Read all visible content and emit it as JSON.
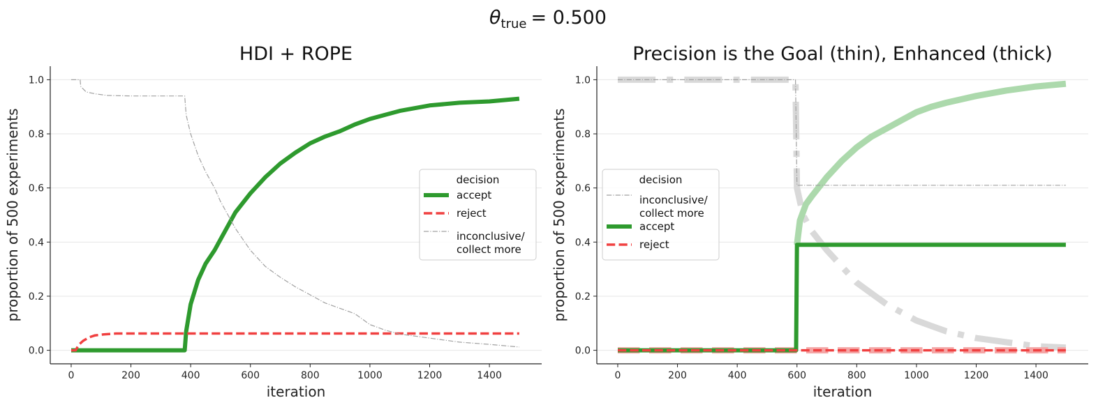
{
  "figure": {
    "suptitle_symbol": "θ",
    "suptitle_subscript": "true",
    "suptitle_value": "= 0.500"
  },
  "chart_data": [
    {
      "type": "line",
      "title": "HDI + ROPE",
      "xlabel": "iteration",
      "ylabel": "proportion of 500 experiments",
      "xlim": [
        -70,
        1575
      ],
      "ylim": [
        -0.05,
        1.05
      ],
      "xticks": [
        0,
        200,
        400,
        600,
        800,
        1000,
        1200,
        1400
      ],
      "yticks": [
        0.0,
        0.2,
        0.4,
        0.6,
        0.8,
        1.0
      ],
      "ytick_labels": [
        "0.0",
        "0.2",
        "0.4",
        "0.6",
        "0.8",
        "1.0"
      ],
      "grid": "horizontal",
      "legend": {
        "title": "decision",
        "position": "center-right"
      },
      "series": [
        {
          "name": "accept",
          "style": "solid",
          "weight": "thick",
          "color": "#2e9a2e",
          "points": [
            [
              0,
              0
            ],
            [
              380,
              0
            ],
            [
              385,
              0.07
            ],
            [
              400,
              0.17
            ],
            [
              425,
              0.26
            ],
            [
              450,
              0.32
            ],
            [
              480,
              0.37
            ],
            [
              500,
              0.41
            ],
            [
              550,
              0.51
            ],
            [
              600,
              0.58
            ],
            [
              650,
              0.64
            ],
            [
              700,
              0.69
            ],
            [
              750,
              0.73
            ],
            [
              800,
              0.765
            ],
            [
              850,
              0.79
            ],
            [
              900,
              0.81
            ],
            [
              950,
              0.835
            ],
            [
              1000,
              0.855
            ],
            [
              1050,
              0.87
            ],
            [
              1100,
              0.885
            ],
            [
              1200,
              0.905
            ],
            [
              1300,
              0.915
            ],
            [
              1400,
              0.92
            ],
            [
              1500,
              0.93
            ]
          ]
        },
        {
          "name": "reject",
          "style": "dashed",
          "weight": "medium",
          "color": "#f04040",
          "points": [
            [
              0,
              0
            ],
            [
              15,
              0
            ],
            [
              25,
              0.02
            ],
            [
              40,
              0.035
            ],
            [
              60,
              0.048
            ],
            [
              80,
              0.055
            ],
            [
              110,
              0.059
            ],
            [
              150,
              0.062
            ],
            [
              200,
              0.062
            ],
            [
              1500,
              0.062
            ]
          ]
        },
        {
          "name": "inconclusive/\ncollect more",
          "style": "dashdot",
          "weight": "thin",
          "color": "#a0a0a0",
          "points": [
            [
              0,
              1.0
            ],
            [
              30,
              1.0
            ],
            [
              32,
              0.975
            ],
            [
              50,
              0.955
            ],
            [
              80,
              0.948
            ],
            [
              120,
              0.942
            ],
            [
              200,
              0.94
            ],
            [
              380,
              0.94
            ],
            [
              385,
              0.87
            ],
            [
              400,
              0.8
            ],
            [
              425,
              0.72
            ],
            [
              450,
              0.66
            ],
            [
              480,
              0.6
            ],
            [
              500,
              0.55
            ],
            [
              550,
              0.45
            ],
            [
              600,
              0.37
            ],
            [
              650,
              0.31
            ],
            [
              700,
              0.27
            ],
            [
              750,
              0.235
            ],
            [
              800,
              0.205
            ],
            [
              850,
              0.175
            ],
            [
              900,
              0.155
            ],
            [
              950,
              0.135
            ],
            [
              1000,
              0.095
            ],
            [
              1050,
              0.075
            ],
            [
              1100,
              0.06
            ],
            [
              1200,
              0.045
            ],
            [
              1300,
              0.03
            ],
            [
              1400,
              0.022
            ],
            [
              1500,
              0.012
            ]
          ]
        }
      ]
    },
    {
      "type": "line",
      "title": "Precision is the Goal (thin), Enhanced (thick)",
      "xlabel": "iteration",
      "ylabel": "proportion of 500 experiments",
      "xlim": [
        -70,
        1575
      ],
      "ylim": [
        -0.05,
        1.05
      ],
      "xticks": [
        0,
        200,
        400,
        600,
        800,
        1000,
        1200,
        1400
      ],
      "yticks": [
        0.0,
        0.2,
        0.4,
        0.6,
        0.8,
        1.0
      ],
      "ytick_labels": [
        "0.0",
        "0.2",
        "0.4",
        "0.6",
        "0.8",
        "1.0"
      ],
      "grid": "horizontal",
      "legend": {
        "title": "decision",
        "position": "center-left"
      },
      "series": [
        {
          "name": "inconclusive/\ncollect more",
          "variant": "enhanced",
          "style": "dashdot",
          "weight": "xthick",
          "color": "#d9d9d9",
          "points": [
            [
              0,
              1.0
            ],
            [
              595,
              1.0
            ],
            [
              600,
              0.6
            ],
            [
              620,
              0.5
            ],
            [
              650,
              0.44
            ],
            [
              700,
              0.37
            ],
            [
              750,
              0.31
            ],
            [
              800,
              0.25
            ],
            [
              850,
              0.21
            ],
            [
              900,
              0.17
            ],
            [
              950,
              0.14
            ],
            [
              1000,
              0.11
            ],
            [
              1050,
              0.09
            ],
            [
              1100,
              0.07
            ],
            [
              1200,
              0.045
            ],
            [
              1300,
              0.03
            ],
            [
              1400,
              0.015
            ],
            [
              1500,
              0.01
            ]
          ]
        },
        {
          "name": "accept",
          "variant": "enhanced",
          "style": "solid",
          "weight": "xthick",
          "color": "#acd9ac",
          "points": [
            [
              600,
              0.39
            ],
            [
              610,
              0.48
            ],
            [
              630,
              0.54
            ],
            [
              650,
              0.57
            ],
            [
              700,
              0.64
            ],
            [
              750,
              0.7
            ],
            [
              800,
              0.75
            ],
            [
              850,
              0.79
            ],
            [
              900,
              0.82
            ],
            [
              950,
              0.85
            ],
            [
              1000,
              0.88
            ],
            [
              1050,
              0.9
            ],
            [
              1100,
              0.915
            ],
            [
              1200,
              0.94
            ],
            [
              1300,
              0.96
            ],
            [
              1400,
              0.975
            ],
            [
              1500,
              0.985
            ]
          ]
        },
        {
          "name": "reject",
          "variant": "enhanced",
          "style": "dashed",
          "weight": "xthick",
          "color": "#f4a6a6",
          "points": [
            [
              0,
              0
            ],
            [
              1500,
              0
            ]
          ]
        },
        {
          "name": "inconclusive/\ncollect more",
          "variant": "thin",
          "style": "dashdot",
          "weight": "thin",
          "color": "#a0a0a0",
          "points": [
            [
              0,
              1.0
            ],
            [
              595,
              1.0
            ],
            [
              600,
              0.61
            ],
            [
              1500,
              0.61
            ]
          ]
        },
        {
          "name": "accept",
          "variant": "thin",
          "style": "solid",
          "weight": "thick",
          "color": "#2e9a2e",
          "points": [
            [
              0,
              0
            ],
            [
              597,
              0
            ],
            [
              600,
              0.39
            ],
            [
              1500,
              0.39
            ]
          ]
        },
        {
          "name": "reject",
          "variant": "thin",
          "style": "dashed",
          "weight": "medium",
          "color": "#f04040",
          "points": [
            [
              0,
              0
            ],
            [
              1500,
              0
            ]
          ]
        }
      ]
    }
  ]
}
